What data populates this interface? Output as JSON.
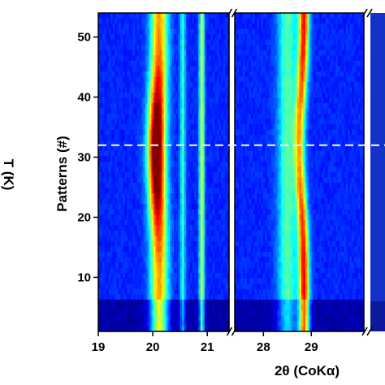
{
  "chart_data": {
    "type": "heatmap",
    "title": "",
    "xlabel": "2θ (CoKα)",
    "ylabel": "Patterns (#)",
    "secondary_ylabel_cropped": "T (K)",
    "ylim": [
      1,
      54
    ],
    "yticks": [
      10,
      20,
      30,
      40,
      50
    ],
    "colormap": "jet",
    "marker_line": {
      "y": 32,
      "style": "dashed",
      "color": "#ffffff"
    },
    "panels": [
      {
        "name": "panel-1",
        "xlim": [
          19,
          21.4
        ],
        "xticks": [
          19,
          20,
          21
        ],
        "peaks": [
          {
            "center_base": 20.12,
            "shift_at_max": -0.05,
            "width": 0.16,
            "intensity_base": 0.55,
            "intensity_max": 1.0,
            "y_max": 31
          },
          {
            "center_base": 20.9,
            "shift_at_max": 0.0,
            "width": 0.045,
            "intensity_base": 0.42,
            "intensity_max": 0.45,
            "y_max": 31
          },
          {
            "center_base": 20.55,
            "shift_at_max": 0.0,
            "width": 0.05,
            "intensity_base": 0.25,
            "intensity_max": 0.27,
            "y_max": 31
          }
        ]
      },
      {
        "name": "panel-2",
        "xlim": [
          27.4,
          30.1
        ],
        "xticks": [
          28,
          29
        ],
        "peaks": [
          {
            "center_base": 28.85,
            "shift_at_max": -0.1,
            "width": 0.11,
            "intensity_base": 0.72,
            "intensity_max": 0.5,
            "y_max": 32
          },
          {
            "center_base": 28.5,
            "shift_at_max": 0.0,
            "width": 0.2,
            "intensity_base": 0.3,
            "intensity_max": 0.3,
            "y_max": 32
          }
        ]
      }
    ]
  }
}
